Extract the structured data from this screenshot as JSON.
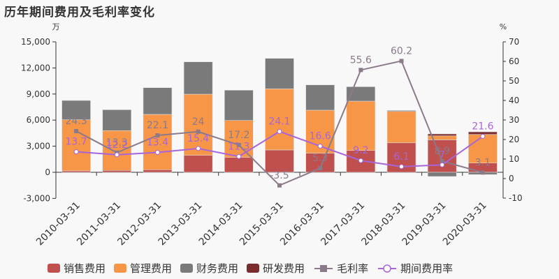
{
  "title": "历年期间费用及毛利率变化",
  "chart_data": {
    "type": "bar",
    "title": "历年期间费用及毛利率变化",
    "categories": [
      "2010-03-31",
      "2011-03-31",
      "2012-03-31",
      "2013-03-31",
      "2014-03-31",
      "2015-03-31",
      "2016-03-31",
      "2017-03-31",
      "2018-03-31",
      "2019-03-31",
      "2020-03-31"
    ],
    "left_axis": {
      "unit": "万",
      "ticks": [
        "15,000",
        "12,000",
        "9,000",
        "6,000",
        "3,000",
        "0",
        "-3,000"
      ],
      "ylim": [
        -3000,
        15000
      ]
    },
    "right_axis": {
      "unit": "%",
      "ticks": [
        "70",
        "60",
        "50",
        "40",
        "30",
        "20",
        "10",
        "0",
        "-10"
      ],
      "ylim": [
        -10,
        70
      ]
    },
    "stacked_series": [
      {
        "name": "销售费用",
        "color": "#c0504d",
        "values": [
          170,
          220,
          300,
          1950,
          1710,
          2570,
          2190,
          2510,
          3390,
          3740,
          1070
        ]
      },
      {
        "name": "管理费用",
        "color": "#f79646",
        "values": [
          5870,
          4570,
          6360,
          7030,
          4250,
          7030,
          4950,
          5670,
          3610,
          450,
          3280
        ]
      },
      {
        "name": "财务费用",
        "color": "#7a7a7a",
        "values": [
          2220,
          2400,
          3070,
          3720,
          3480,
          3500,
          2910,
          1660,
          110,
          -480,
          -260
        ]
      },
      {
        "name": "研发费用",
        "color": "#7b2c2c",
        "values": [
          0,
          0,
          0,
          0,
          0,
          0,
          0,
          0,
          0,
          220,
          300
        ]
      }
    ],
    "line_series": [
      {
        "name": "毛利率",
        "color": "#8a7a8a",
        "axis": "right",
        "values": [
          24.3,
          13.3,
          22.1,
          24,
          17.2,
          -3.5,
          5.3,
          55.6,
          60.2,
          8.9,
          3.1
        ]
      },
      {
        "name": "期间费用率",
        "color": "#a765d9",
        "axis": "right",
        "values": [
          13.7,
          12.2,
          13.4,
          15.4,
          11.3,
          24.1,
          16.6,
          9.2,
          6.1,
          7,
          21.6
        ]
      }
    ],
    "legend_position": "bottom",
    "grid": false
  },
  "legend": [
    {
      "label": "销售费用",
      "type": "box",
      "color": "#c0504d"
    },
    {
      "label": "管理费用",
      "type": "box",
      "color": "#f79646"
    },
    {
      "label": "财务费用",
      "type": "box",
      "color": "#7a7a7a"
    },
    {
      "label": "研发费用",
      "type": "box",
      "color": "#7b2c2c"
    },
    {
      "label": "毛利率",
      "type": "line-square",
      "color": "#8a7a8a"
    },
    {
      "label": "期间费用率",
      "type": "line-circle",
      "color": "#a765d9"
    }
  ]
}
